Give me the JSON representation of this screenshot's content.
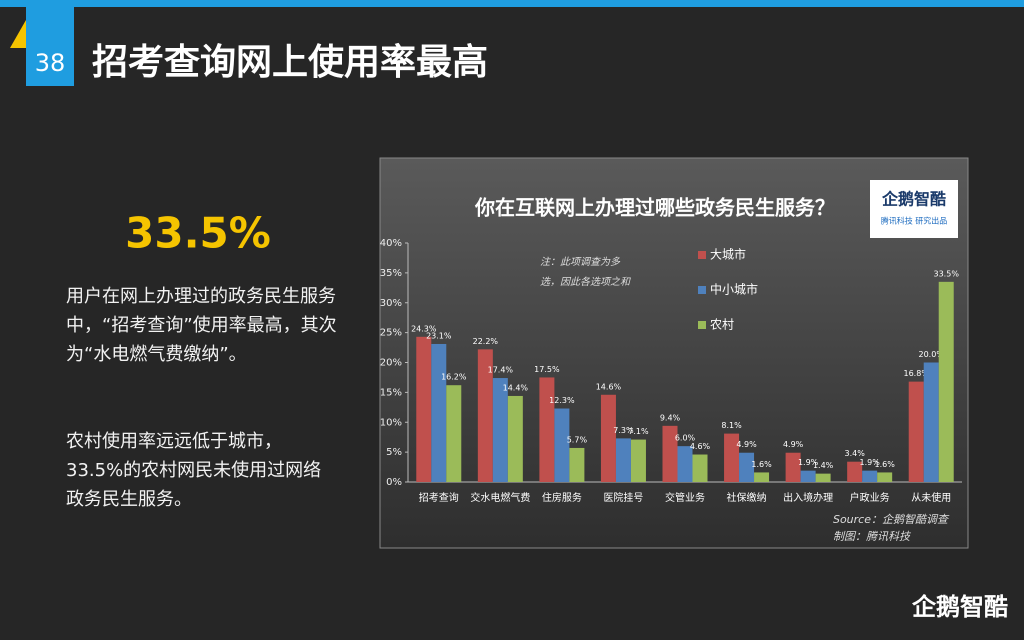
{
  "slide": {
    "page_number": "38",
    "title": "招考查询网上使用率最高",
    "highlight": "33.5%",
    "paragraphs": [
      "用户在网上办理过的政务民生服务中，“招考查询”使用率最高，其次为“水电燃气费缴纳”。",
      "农村使用率远远低于城市，33.5%的农村网民未使用过网络政务民生服务。"
    ],
    "footer_logo": "企鹅智酷"
  },
  "chart_data": {
    "type": "bar",
    "title": "你在互联网上办理过哪些政务民生服务？",
    "logo": [
      "企鹅智酷",
      "腾讯科技 研究出品"
    ],
    "annotation": [
      "注：此项调查为多",
      "选，因此各选项之和"
    ],
    "source": [
      "Source：企鹅智酷调查",
      "制图：腾讯科技"
    ],
    "categories": [
      "招考查询",
      "交水电燃气费",
      "住房服务",
      "医院挂号",
      "交管业务",
      "社保缴纳",
      "出入境办理",
      "户政业务",
      "从未使用"
    ],
    "series": [
      {
        "name": "大城市",
        "color": "#c0504d",
        "values": [
          24.3,
          22.2,
          17.5,
          14.6,
          9.4,
          8.1,
          4.9,
          3.4,
          16.8
        ],
        "value_labels": [
          "24.3%",
          "22.2%",
          "17.5%",
          "14.6%",
          "9.4%",
          "8.1%",
          "4.9%",
          "3.4%",
          "16.8%"
        ]
      },
      {
        "name": "中小城市",
        "color": "#4f81bd",
        "values": [
          23.1,
          17.4,
          12.3,
          7.3,
          6,
          4.9,
          1.9,
          1.9,
          20
        ],
        "value_labels": [
          "23.1%",
          "17.4%",
          "12.3%",
          "7.3%",
          "6.0%",
          "4.9%",
          "1.9%",
          "1.9%",
          "20.0%"
        ]
      },
      {
        "name": "农村",
        "color": "#9bbb59",
        "values": [
          16.2,
          14.4,
          5.7,
          7.1,
          4.6,
          1.6,
          1.4,
          1.6,
          33.5
        ],
        "value_labels": [
          "16.2%",
          "14.4%",
          "5.7%",
          "7.1%",
          "4.6%",
          "1.6%",
          "1.4%",
          "1.6%",
          "33.5%"
        ]
      }
    ],
    "ylim": [
      0,
      40
    ],
    "yticks": [
      {
        "value": 0,
        "label": "0%"
      },
      {
        "value": 5,
        "label": "5%"
      },
      {
        "value": 10,
        "label": "10%"
      },
      {
        "value": 15,
        "label": "15%"
      },
      {
        "value": 20,
        "label": "20%"
      },
      {
        "value": 25,
        "label": "25%"
      },
      {
        "value": 30,
        "label": "30%"
      },
      {
        "value": 35,
        "label": "35%"
      },
      {
        "value": 40,
        "label": "40%"
      }
    ],
    "grid": false
  }
}
